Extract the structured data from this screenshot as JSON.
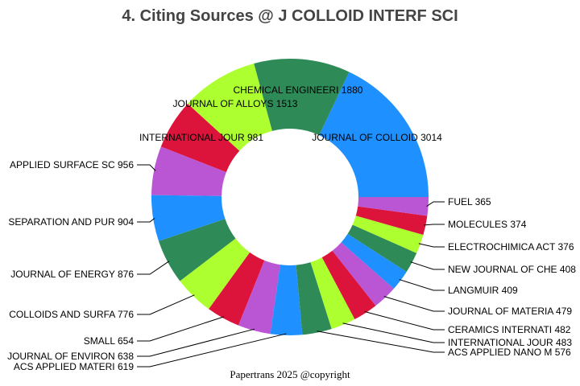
{
  "chart_data": {
    "type": "pie",
    "donut": true,
    "title": "4. Citing Sources @ J COLLOID INTERF SCI",
    "footer": "Papertrans 2025 @copyright",
    "direction": "counterclockwise from 3 o'clock",
    "colors": [
      "#1E90FF",
      "#2E8B57",
      "#ADFF2F",
      "#DC143C",
      "#BA55D3"
    ],
    "slices": [
      {
        "label": "JOURNAL OF COLLOID",
        "value": 3014
      },
      {
        "label": "CHEMICAL ENGINEERI",
        "value": 1880
      },
      {
        "label": "JOURNAL OF ALLOYS ",
        "value": 1513
      },
      {
        "label": "INTERNATIONAL JOUR",
        "value": 981
      },
      {
        "label": "APPLIED SURFACE SC",
        "value": 956
      },
      {
        "label": "SEPARATION AND PUR",
        "value": 904
      },
      {
        "label": "JOURNAL OF ENERGY ",
        "value": 876
      },
      {
        "label": "COLLOIDS AND SURFA",
        "value": 776
      },
      {
        "label": "SMALL",
        "value": 654
      },
      {
        "label": "JOURNAL OF ENVIRON",
        "value": 638
      },
      {
        "label": "ACS APPLIED MATERI",
        "value": 619
      },
      {
        "label": "ACS APPLIED NANO M",
        "value": 576
      },
      {
        "label": "INTERNATIONAL JOUR",
        "value": 483
      },
      {
        "label": "CERAMICS INTERNATI",
        "value": 482
      },
      {
        "label": "JOURNAL OF MATERIA",
        "value": 479
      },
      {
        "label": "LANGMUIR",
        "value": 409
      },
      {
        "label": "NEW JOURNAL OF CHE",
        "value": 408
      },
      {
        "label": "ELECTROCHIMICA ACT",
        "value": 376
      },
      {
        "label": "MOLECULES",
        "value": 374
      },
      {
        "label": "FUEL",
        "value": 365
      }
    ]
  }
}
